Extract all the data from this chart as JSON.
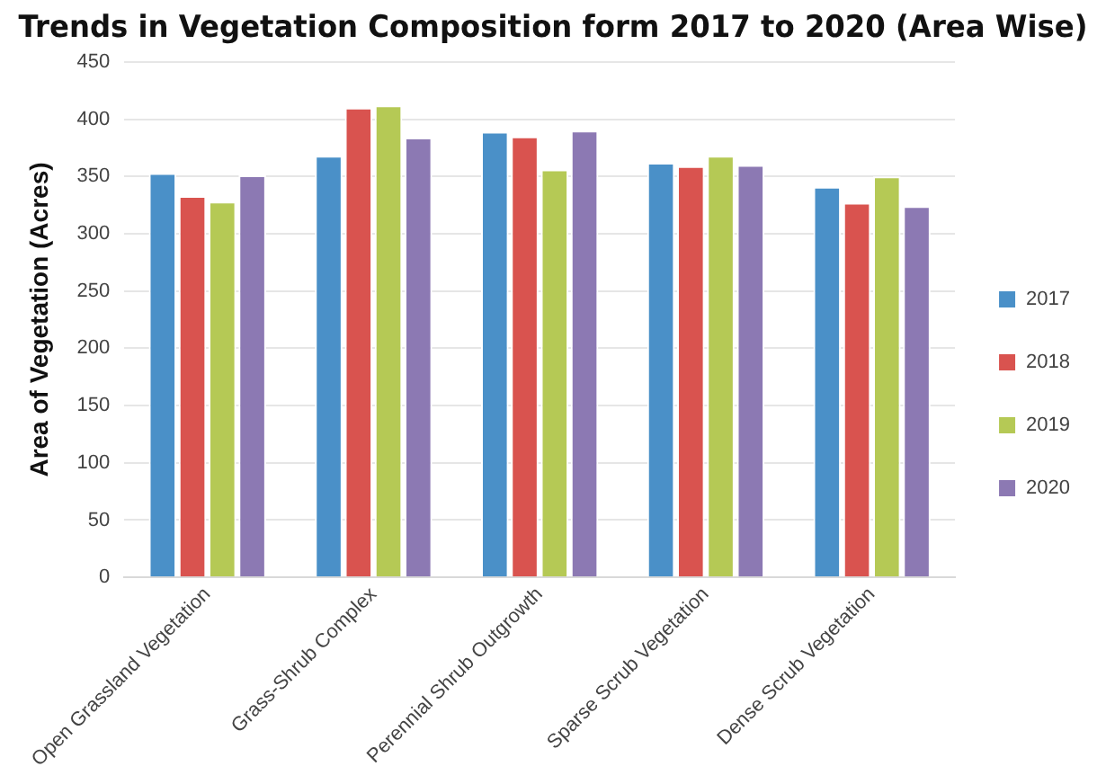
{
  "chart_data": {
    "type": "bar",
    "title": "Trends in Vegetation Composition form 2017 to 2020 (Area Wise)",
    "ylabel": "Area of Vegetation (Acres)",
    "categories": [
      "Open Grassland Vegetation",
      "Grass-Shrub Complex",
      "Perennial Shrub Outgrowth",
      "Sparse Scrub Vegetation",
      "Dense Scrub Vegetation"
    ],
    "series": [
      {
        "name": "2017",
        "color": "#4a90c8",
        "values": [
          353,
          368,
          389,
          362,
          341
        ]
      },
      {
        "name": "2018",
        "color": "#d9534f",
        "values": [
          333,
          410,
          385,
          359,
          327
        ]
      },
      {
        "name": "2019",
        "color": "#b5c955",
        "values": [
          328,
          412,
          356,
          368,
          350
        ]
      },
      {
        "name": "2020",
        "color": "#8c79b3",
        "values": [
          351,
          384,
          390,
          360,
          324
        ]
      }
    ],
    "ylim": [
      0,
      450
    ],
    "yticks": [
      0,
      50,
      100,
      150,
      200,
      250,
      300,
      350,
      400,
      450
    ],
    "grid": "y",
    "legend": "right"
  }
}
